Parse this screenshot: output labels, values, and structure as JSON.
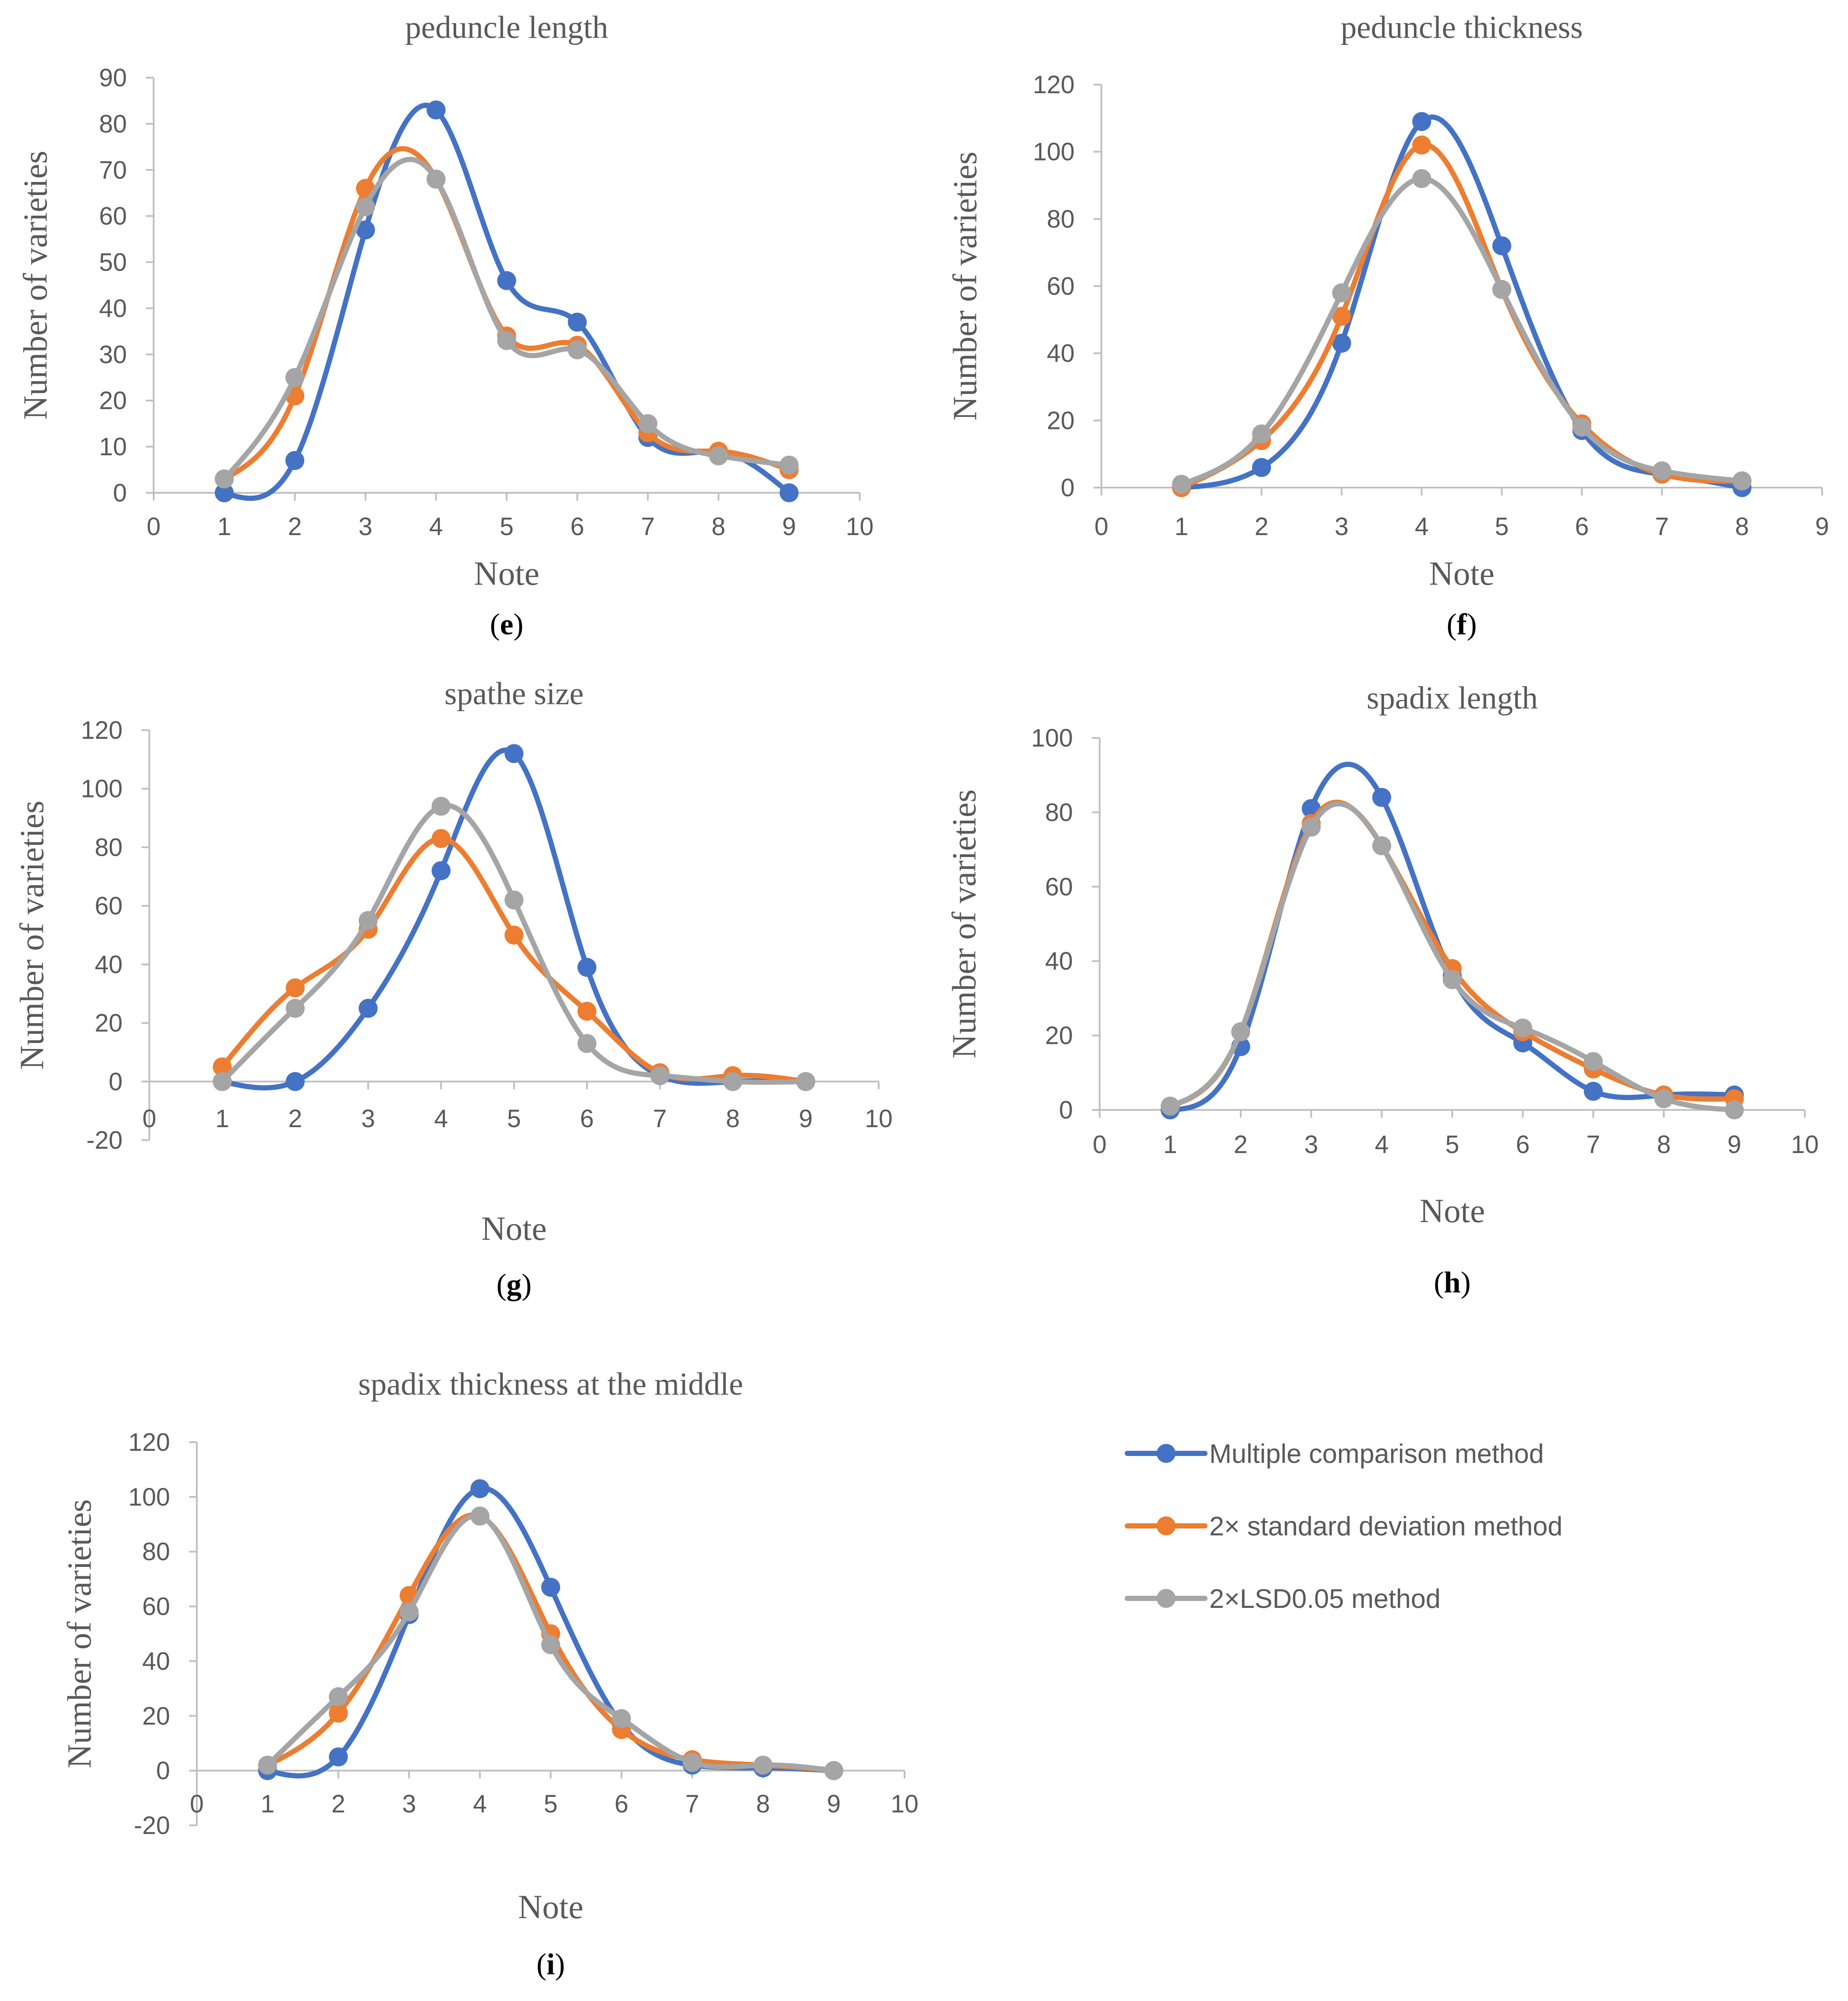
{
  "legend": {
    "items": [
      {
        "name": "Multiple comparison method",
        "color": "#4472c4"
      },
      {
        "name": "2× standard deviation method",
        "color": "#ed7d31"
      },
      {
        "name": "2×LSD0.05 method",
        "color": "#a5a5a5"
      }
    ]
  },
  "chart_data": [
    {
      "id": "e",
      "type": "line",
      "panel_label": "e",
      "title": "peduncle length",
      "xlabel": "Note",
      "ylabel": "Number of varieties",
      "xlim": [
        0,
        10
      ],
      "ylim": [
        0,
        90
      ],
      "xticks": [
        0,
        1,
        2,
        3,
        4,
        5,
        6,
        7,
        8,
        9,
        10
      ],
      "yticks": [
        0,
        10,
        20,
        30,
        40,
        50,
        60,
        70,
        80,
        90
      ],
      "x": [
        1,
        2,
        3,
        4,
        5,
        6,
        7,
        8,
        9
      ],
      "series": [
        {
          "name": "Multiple comparison method",
          "values": [
            0,
            7,
            57,
            83,
            46,
            37,
            12,
            9,
            0
          ]
        },
        {
          "name": "2× standard deviation method",
          "values": [
            3,
            21,
            66,
            68,
            34,
            32,
            13,
            9,
            5
          ]
        },
        {
          "name": "2×LSD0.05 method",
          "values": [
            3,
            25,
            62,
            68,
            33,
            31,
            15,
            8,
            6
          ]
        }
      ]
    },
    {
      "id": "f",
      "type": "line",
      "panel_label": "f",
      "title": "peduncle thickness",
      "xlabel": "Note",
      "ylabel": "Number of varieties",
      "xlim": [
        0,
        9
      ],
      "ylim": [
        0,
        120
      ],
      "xticks": [
        0,
        1,
        2,
        3,
        4,
        5,
        6,
        7,
        8,
        9
      ],
      "yticks": [
        0,
        20,
        40,
        60,
        80,
        100,
        120
      ],
      "x": [
        1,
        2,
        3,
        4,
        5,
        6,
        7,
        8
      ],
      "series": [
        {
          "name": "Multiple comparison method",
          "values": [
            0,
            6,
            43,
            109,
            72,
            17,
            4,
            0
          ]
        },
        {
          "name": "2× standard deviation method",
          "values": [
            0,
            14,
            51,
            102,
            59,
            19,
            4,
            2
          ]
        },
        {
          "name": "2×LSD0.05 method",
          "values": [
            1,
            16,
            58,
            92,
            59,
            18,
            5,
            2
          ]
        }
      ]
    },
    {
      "id": "g",
      "type": "line",
      "panel_label": "g",
      "title": "spathe size",
      "xlabel": "Note",
      "ylabel": "Number of varieties",
      "xlim": [
        0,
        10
      ],
      "ylim": [
        -20,
        120
      ],
      "xticks": [
        0,
        1,
        2,
        3,
        4,
        5,
        6,
        7,
        8,
        9,
        10
      ],
      "yticks": [
        -20,
        0,
        20,
        40,
        60,
        80,
        100,
        120
      ],
      "x": [
        1,
        2,
        3,
        4,
        5,
        6,
        7,
        8,
        9
      ],
      "series": [
        {
          "name": "Multiple comparison method",
          "values": [
            0,
            0,
            25,
            72,
            112,
            39,
            2,
            0,
            0
          ]
        },
        {
          "name": "2× standard deviation method",
          "values": [
            5,
            32,
            52,
            83,
            50,
            24,
            3,
            2,
            0
          ]
        },
        {
          "name": "2×LSD0.05 method",
          "values": [
            0,
            25,
            55,
            94,
            62,
            13,
            2,
            0,
            0
          ]
        }
      ]
    },
    {
      "id": "h",
      "type": "line",
      "panel_label": "h",
      "title": "spadix length",
      "xlabel": "Note",
      "ylabel": "Number of varieties",
      "xlim": [
        0,
        10
      ],
      "ylim": [
        0,
        100
      ],
      "xticks": [
        0,
        1,
        2,
        3,
        4,
        5,
        6,
        7,
        8,
        9,
        10
      ],
      "yticks": [
        0,
        20,
        40,
        60,
        80,
        100
      ],
      "x": [
        1,
        2,
        3,
        4,
        5,
        6,
        7,
        8,
        9
      ],
      "series": [
        {
          "name": "Multiple comparison method",
          "values": [
            0,
            17,
            81,
            84,
            36,
            18,
            5,
            4,
            4
          ]
        },
        {
          "name": "2× standard deviation method",
          "values": [
            1,
            21,
            77,
            71,
            38,
            21,
            11,
            4,
            3
          ]
        },
        {
          "name": "2×LSD0.05 method",
          "values": [
            1,
            21,
            76,
            71,
            35,
            22,
            13,
            3,
            0
          ]
        }
      ]
    },
    {
      "id": "i",
      "type": "line",
      "panel_label": "i",
      "title": "spadix thickness at the middle",
      "xlabel": "Note",
      "ylabel": "Number of varieties",
      "xlim": [
        0,
        10
      ],
      "ylim": [
        -20,
        120
      ],
      "xticks": [
        0,
        1,
        2,
        3,
        4,
        5,
        6,
        7,
        8,
        9,
        10
      ],
      "yticks": [
        -20,
        0,
        20,
        40,
        60,
        80,
        100,
        120
      ],
      "x": [
        1,
        2,
        3,
        4,
        5,
        6,
        7,
        8,
        9
      ],
      "series": [
        {
          "name": "Multiple comparison method",
          "values": [
            0,
            5,
            57,
            103,
            67,
            17,
            2,
            1,
            0
          ]
        },
        {
          "name": "2× standard deviation method",
          "values": [
            2,
            21,
            64,
            93,
            50,
            15,
            4,
            2,
            0
          ]
        },
        {
          "name": "2×LSD0.05 method",
          "values": [
            2,
            27,
            58,
            93,
            46,
            19,
            3,
            2,
            0
          ]
        }
      ]
    }
  ]
}
